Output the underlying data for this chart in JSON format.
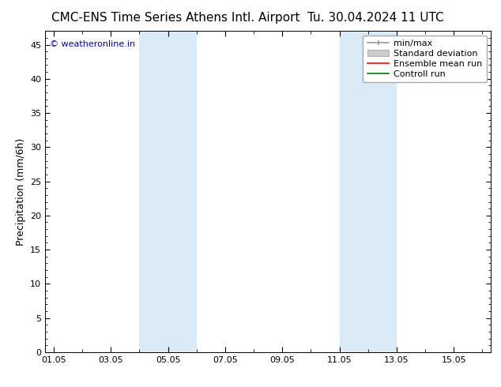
{
  "title_left": "CMC-ENS Time Series Athens Intl. Airport",
  "title_right": "Tu. 30.04.2024 11 UTC",
  "ylabel": "Precipitation (mm/6h)",
  "ylim": [
    0,
    47
  ],
  "yticks": [
    0,
    5,
    10,
    15,
    20,
    25,
    30,
    35,
    40,
    45
  ],
  "xtick_labels": [
    "01.05",
    "03.05",
    "05.05",
    "07.05",
    "09.05",
    "11.05",
    "13.05",
    "15.05"
  ],
  "xtick_positions": [
    0,
    2,
    4,
    6,
    8,
    10,
    12,
    14
  ],
  "x_min": -0.3,
  "x_max": 15.3,
  "shaded_bands": [
    {
      "x_start": 3.0,
      "x_end": 5.0
    },
    {
      "x_start": 10.0,
      "x_end": 12.0
    }
  ],
  "shade_color": "#daeaf7",
  "background_color": "#ffffff",
  "plot_bg_color": "#ffffff",
  "watermark_text": "© weatheronline.in",
  "watermark_color": "#0000bb",
  "title_fontsize": 11,
  "axis_label_fontsize": 9,
  "tick_fontsize": 8,
  "legend_fontsize": 8,
  "watermark_fontsize": 8
}
